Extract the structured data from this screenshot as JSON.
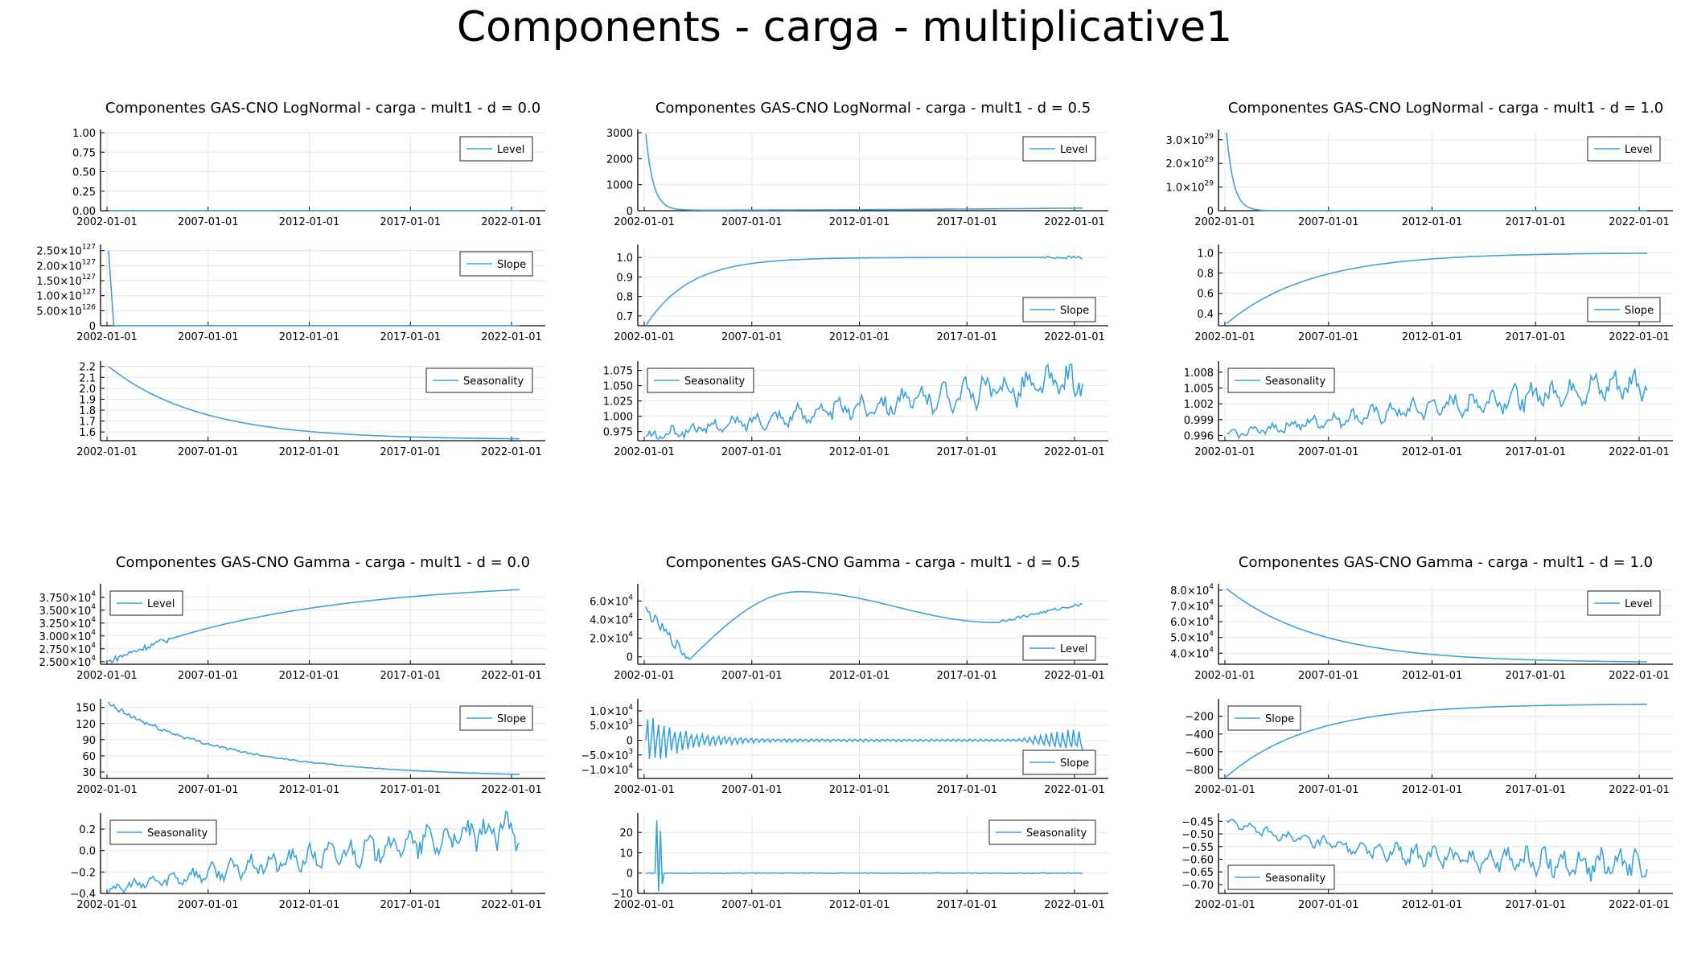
{
  "figure": {
    "title": "Components - carga - multiplicative1"
  },
  "colors": {
    "series": "#3ba3da",
    "axis": "#000000",
    "grid": "#e6e6e6",
    "legend_border": "#222222"
  },
  "chart_data": [
    {
      "title": "Componentes GAS-CNO LogNormal - carga - mult1 - d = 0.0",
      "x_ticks": [
        "2002-01-01",
        "2007-01-01",
        "2012-01-01",
        "2017-01-01",
        "2022-01-01"
      ],
      "panels": [
        {
          "type": "line",
          "legend": "Level",
          "legend_pos": "top-right",
          "ylim": [
            0,
            1.0
          ],
          "y_ticks": [
            "0.00",
            "0.25",
            "0.50",
            "0.75",
            "1.00"
          ],
          "series": [
            {
              "name": "Level",
              "shape": "flat",
              "values": [
                0,
                0
              ]
            }
          ]
        },
        {
          "type": "line",
          "legend": "Slope",
          "legend_pos": "top-right",
          "ylim": [
            0,
            2.6e+127
          ],
          "y_ticks": [
            "0",
            "5.00×10^126",
            "1.00×10^127",
            "1.50×10^127",
            "2.00×10^127",
            "2.50×10^127"
          ],
          "series": [
            {
              "name": "Slope",
              "shape": "spike_decay",
              "values": [
                2.5e+127,
                0
              ]
            }
          ]
        },
        {
          "type": "line",
          "legend": "Seasonality",
          "legend_pos": "top-right",
          "ylim": [
            1.52,
            2.22
          ],
          "y_ticks": [
            "1.6",
            "1.7",
            "1.8",
            "1.9",
            "2.0",
            "2.1",
            "2.2"
          ],
          "series": [
            {
              "name": "Seasonality",
              "shape": "exp_decay",
              "values": [
                2.2,
                1.53
              ]
            }
          ]
        }
      ]
    },
    {
      "title": "Componentes GAS-CNO LogNormal - carga - mult1 - d = 0.5",
      "x_ticks": [
        "2002-01-01",
        "2007-01-01",
        "2012-01-01",
        "2017-01-01",
        "2022-01-01"
      ],
      "panels": [
        {
          "type": "line",
          "legend": "Level",
          "legend_pos": "top-right",
          "ylim": [
            0,
            3000
          ],
          "y_ticks": [
            "0",
            "1000",
            "2000",
            "3000"
          ],
          "series": [
            {
              "name": "Level",
              "shape": "fast_decay",
              "values": [
                2950,
                20,
                100
              ]
            }
          ]
        },
        {
          "type": "line",
          "legend": "Slope",
          "legend_pos": "bottom-right",
          "ylim": [
            0.65,
            1.05
          ],
          "y_ticks": [
            "0.7",
            "0.8",
            "0.9",
            "1.0"
          ],
          "series": [
            {
              "name": "Slope",
              "shape": "saturate",
              "values": [
                0.65,
                1.0
              ]
            }
          ]
        },
        {
          "type": "line",
          "legend": "Seasonality",
          "legend_pos": "top-left",
          "ylim": [
            0.96,
            1.085
          ],
          "y_ticks": [
            "0.975",
            "1.000",
            "1.025",
            "1.050",
            "1.075"
          ],
          "series": [
            {
              "name": "Seasonality",
              "shape": "noisy_rise",
              "values": [
                0.965,
                1.06
              ]
            }
          ]
        }
      ]
    },
    {
      "title": "Componentes GAS-CNO LogNormal - carga - mult1 - d = 1.0",
      "x_ticks": [
        "2002-01-01",
        "2007-01-01",
        "2012-01-01",
        "2017-01-01",
        "2022-01-01"
      ],
      "panels": [
        {
          "type": "line",
          "legend": "Level",
          "legend_pos": "top-right",
          "ylim": [
            0,
            3.3e+29
          ],
          "y_ticks": [
            "0",
            "1.0×10^29",
            "2.0×10^29",
            "3.0×10^29"
          ],
          "series": [
            {
              "name": "Level",
              "shape": "fast_decay",
              "values": [
                3.3e+29,
                0,
                0
              ]
            }
          ]
        },
        {
          "type": "line",
          "legend": "Slope",
          "legend_pos": "bottom-right",
          "ylim": [
            0.28,
            1.05
          ],
          "y_ticks": [
            "0.4",
            "0.6",
            "0.8",
            "1.0"
          ],
          "series": [
            {
              "name": "Slope",
              "shape": "saturate_slow",
              "values": [
                0.3,
                1.0
              ]
            }
          ]
        },
        {
          "type": "line",
          "legend": "Seasonality",
          "legend_pos": "top-left",
          "ylim": [
            0.995,
            1.0095
          ],
          "y_ticks": [
            "0.996",
            "0.999",
            "1.002",
            "1.005",
            "1.008"
          ],
          "series": [
            {
              "name": "Seasonality",
              "shape": "noisy_rise",
              "values": [
                0.996,
                1.006
              ]
            }
          ]
        }
      ]
    },
    {
      "title": "Componentes GAS-CNO Gamma - carga - mult1 - d = 0.0",
      "x_ticks": [
        "2002-01-01",
        "2007-01-01",
        "2012-01-01",
        "2017-01-01",
        "2022-01-01"
      ],
      "panels": [
        {
          "type": "line",
          "legend": "Level",
          "legend_pos": "top-left",
          "ylim": [
            24500,
            39500
          ],
          "y_ticks": [
            "2.500×10^4",
            "2.750×10^4",
            "3.000×10^4",
            "3.250×10^4",
            "3.500×10^4",
            "3.750×10^4"
          ],
          "series": [
            {
              "name": "Level",
              "shape": "log_rise",
              "values": [
                25000,
                39000
              ]
            }
          ]
        },
        {
          "type": "line",
          "legend": "Slope",
          "legend_pos": "top-right",
          "ylim": [
            18,
            160
          ],
          "y_ticks": [
            "30",
            "60",
            "90",
            "120",
            "150"
          ],
          "series": [
            {
              "name": "Slope",
              "shape": "exp_decay_noisy",
              "values": [
                155,
                20
              ]
            }
          ]
        },
        {
          "type": "line",
          "legend": "Seasonality",
          "legend_pos": "top-left",
          "ylim": [
            -0.4,
            0.32
          ],
          "y_ticks": [
            "-0.4",
            "-0.2",
            "0.0",
            "0.2"
          ],
          "series": [
            {
              "name": "Seasonality",
              "shape": "noisy_rise",
              "values": [
                -0.37,
                0.2
              ]
            }
          ]
        }
      ]
    },
    {
      "title": "Componentes GAS-CNO Gamma - carga - mult1 - d = 0.5",
      "x_ticks": [
        "2002-01-01",
        "2007-01-01",
        "2012-01-01",
        "2017-01-01",
        "2022-01-01"
      ],
      "panels": [
        {
          "type": "line",
          "legend": "Level",
          "legend_pos": "bottom-right",
          "ylim": [
            -8000,
            75000
          ],
          "y_ticks": [
            "0",
            "2.0×10^4",
            "4.0×10^4",
            "6.0×10^4"
          ],
          "series": [
            {
              "name": "Level",
              "shape": "wave",
              "values": [
                50000,
                -3000,
                70000,
                37000,
                57000
              ]
            }
          ]
        },
        {
          "type": "line",
          "legend": "Slope",
          "legend_pos": "bottom-right",
          "ylim": [
            -13000,
            13000
          ],
          "y_ticks": [
            "-1.0×10^4",
            "-5.0×10^3",
            "0",
            "5.0×10^3",
            "1.0×10^4"
          ],
          "series": [
            {
              "name": "Slope",
              "shape": "damped_osc",
              "values": [
                12000,
                0
              ]
            }
          ]
        },
        {
          "type": "line",
          "legend": "Seasonality",
          "legend_pos": "top-right",
          "ylim": [
            -10,
            28
          ],
          "y_ticks": [
            "-10",
            "0",
            "10",
            "20"
          ],
          "series": [
            {
              "name": "Seasonality",
              "shape": "spike",
              "values": [
                0,
                26,
                -9
              ]
            }
          ]
        }
      ]
    },
    {
      "title": "Componentes GAS-CNO Gamma - carga - mult1 - d = 1.0",
      "x_ticks": [
        "2002-01-01",
        "2007-01-01",
        "2012-01-01",
        "2017-01-01",
        "2022-01-01"
      ],
      "panels": [
        {
          "type": "line",
          "legend": "Level",
          "legend_pos": "top-right",
          "ylim": [
            33000,
            82000
          ],
          "y_ticks": [
            "4.0×10^4",
            "5.0×10^4",
            "6.0×10^4",
            "7.0×10^4",
            "8.0×10^4"
          ],
          "series": [
            {
              "name": "Level",
              "shape": "exp_decay",
              "values": [
                81000,
                34000
              ]
            }
          ]
        },
        {
          "type": "line",
          "legend": "Slope",
          "legend_pos": "top-left",
          "ylim": [
            -900,
            -40
          ],
          "y_ticks": [
            "-800",
            "-600",
            "-400",
            "-200"
          ],
          "series": [
            {
              "name": "Slope",
              "shape": "saturate_slow",
              "values": [
                -880,
                -60
              ]
            }
          ]
        },
        {
          "type": "line",
          "legend": "Seasonality",
          "legend_pos": "bottom-left",
          "ylim": [
            -0.735,
            -0.43
          ],
          "y_ticks": [
            "-0.70",
            "-0.65",
            "-0.60",
            "-0.55",
            "-0.50",
            "-0.45"
          ],
          "series": [
            {
              "name": "Seasonality",
              "shape": "noisy_fall",
              "values": [
                -0.45,
                -0.63
              ]
            }
          ]
        }
      ]
    }
  ]
}
